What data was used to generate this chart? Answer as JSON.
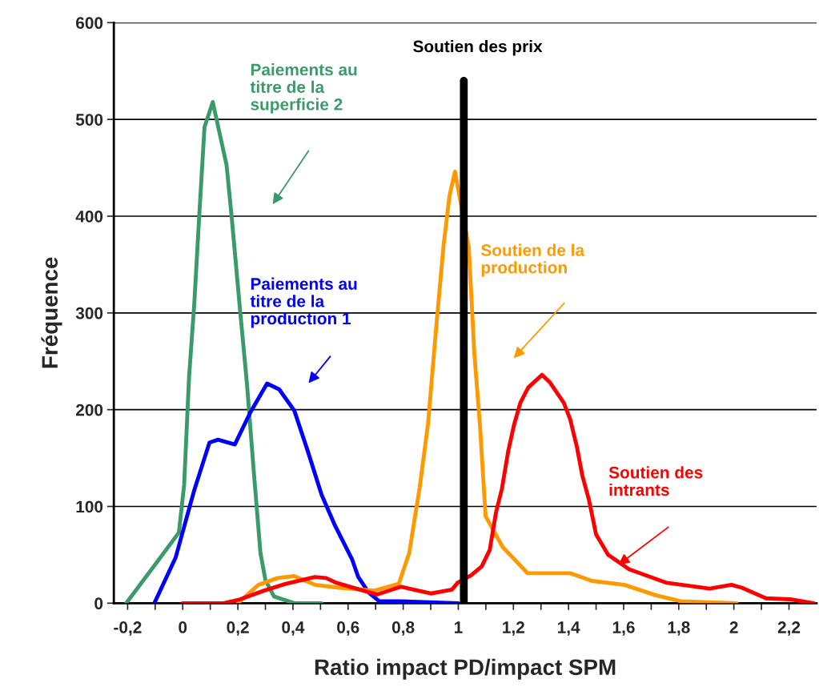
{
  "chart_data": {
    "type": "line",
    "xlabel": "Ratio impact PD/impact SPM",
    "ylabel": "Fréquence",
    "xlim": [
      -0.25,
      2.3
    ],
    "ylim": [
      0,
      600
    ],
    "xticks": [
      {
        "value": -0.2,
        "label": "-0,2"
      },
      {
        "value": -0.1,
        "label": null
      },
      0,
      {
        "value": 0.1,
        "label": null
      },
      {
        "value": 0.2,
        "label": "0,2"
      },
      {
        "value": 0.3,
        "label": null
      },
      {
        "value": 0.4,
        "label": "0,4"
      },
      {
        "value": 0.5,
        "label": null
      },
      {
        "value": 0.6,
        "label": "0,6"
      },
      {
        "value": 0.7,
        "label": null
      },
      {
        "value": 0.8,
        "label": "0,8"
      },
      {
        "value": 0.9,
        "label": null
      },
      1,
      {
        "value": 1.1,
        "label": null
      },
      {
        "value": 1.2,
        "label": "1,2"
      },
      {
        "value": 1.3,
        "label": null
      },
      {
        "value": 1.4,
        "label": "1,4"
      },
      {
        "value": 1.5,
        "label": null
      },
      {
        "value": 1.6,
        "label": "1,6"
      },
      {
        "value": 1.7,
        "label": null
      },
      {
        "value": 1.8,
        "label": "1,8"
      },
      {
        "value": 1.9,
        "label": null
      },
      2,
      {
        "value": 2.1,
        "label": null
      },
      {
        "value": 2.2,
        "label": "2,2"
      }
    ],
    "yticks": [
      0,
      100,
      200,
      300,
      400,
      500,
      600
    ],
    "grid": "y",
    "legend": false,
    "marker": "none",
    "line_style": "solid",
    "series": [
      {
        "color": "#3a9a6a",
        "x": [
          -0.205,
          -0.1,
          -0.014,
          0.005,
          0.023,
          0.042,
          0.06,
          0.079,
          0.109,
          0.159,
          0.177,
          0.208,
          0.233,
          0.257,
          0.282,
          0.3,
          0.331,
          0.405,
          0.503
        ],
        "values": [
          0,
          40,
          73,
          122,
          234,
          310,
          401,
          492,
          518,
          453,
          401,
          303,
          227,
          139,
          52,
          24,
          7,
          0,
          0
        ]
      },
      {
        "color": "#0000ff",
        "x": [
          -0.103,
          -0.026,
          0.042,
          0.097,
          0.128,
          0.189,
          0.245,
          0.306,
          0.35,
          0.405,
          0.454,
          0.504,
          0.553,
          0.615,
          0.637,
          0.675,
          0.713,
          0.784,
          1.0
        ],
        "values": [
          0,
          47,
          117,
          166,
          169,
          164,
          197,
          227,
          221,
          199,
          157,
          112,
          80,
          45,
          27,
          11,
          2,
          2,
          0
        ]
      },
      {
        "color": "#ff9900",
        "x": [
          0.2,
          0.275,
          0.345,
          0.404,
          0.48,
          0.567,
          0.696,
          0.784,
          0.822,
          0.86,
          0.89,
          0.921,
          0.947,
          0.968,
          0.988,
          1.015,
          1.038,
          1.058,
          1.079,
          1.099,
          1.161,
          1.205,
          1.251,
          1.406,
          1.485,
          1.602,
          1.719,
          1.807,
          2.01
        ],
        "values": [
          0,
          19,
          26,
          28,
          19,
          16,
          13,
          20,
          52,
          120,
          185,
          289,
          371,
          421,
          446,
          null,
          368,
          259,
          182,
          90,
          58,
          45,
          31,
          31,
          23,
          19,
          8,
          2,
          0
        ]
      },
      {
        "color": "#ff0000",
        "x": [
          0,
          0.149,
          0.208,
          0.295,
          0.374,
          0.48,
          0.52,
          0.558,
          0.655,
          0.705,
          0.792,
          0.9,
          0.977,
          0.997,
          1.047,
          1.085,
          1.114,
          1.137,
          1.158,
          1.181,
          1.202,
          1.225,
          1.254,
          1.304,
          1.333,
          1.383,
          1.406,
          1.43,
          1.45,
          1.474,
          1.5,
          1.544,
          1.62,
          1.757,
          1.912,
          1.991,
          2.029,
          2.117,
          2.205,
          2.29
        ],
        "values": [
          0,
          0,
          4,
          13,
          20,
          27,
          26,
          21,
          13,
          9,
          17,
          10,
          14,
          21,
          29,
          38,
          55,
          94,
          118,
          157,
          184,
          207,
          223,
          236,
          228,
          207,
          190,
          162,
          132,
          107,
          71,
          50,
          35,
          21,
          15,
          19,
          16,
          5,
          4,
          0
        ]
      }
    ],
    "ref_lines": [
      {
        "axis": "x",
        "value": 1.02,
        "label": "Soutien des prix",
        "color": "#000000"
      }
    ],
    "annotations": [
      "Paiements au\ntitre de la\nsuperficie 2",
      "Paiements au\ntitre de la\nproduction 1",
      "Soutien de la\nproduction",
      "Soutien des\nintrants"
    ]
  }
}
